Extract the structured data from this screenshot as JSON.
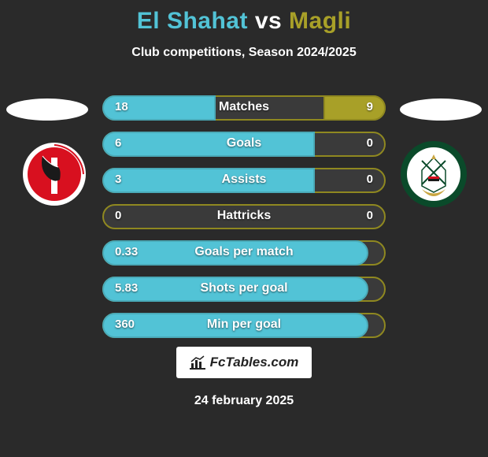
{
  "title": {
    "player1": "El Shahat",
    "vs": "vs",
    "player2": "Magli",
    "color1": "#52c3d6",
    "color_vs": "#ffffff",
    "color2": "#a8a028"
  },
  "subtitle": "Club competitions, Season 2024/2025",
  "accent": {
    "left": "#52c3d6",
    "right": "#a8a028"
  },
  "bar_bg": "#3a3a3a",
  "border_teal": "#4aaab8",
  "border_olive": "#8f8820",
  "stats": [
    {
      "label": "Matches",
      "left_val": "18",
      "right_val": "9",
      "left_pct": 40,
      "right_pct": 22
    },
    {
      "label": "Goals",
      "left_val": "6",
      "right_val": "0",
      "left_pct": 75,
      "right_pct": 0
    },
    {
      "label": "Assists",
      "left_val": "3",
      "right_val": "0",
      "left_pct": 75,
      "right_pct": 0
    },
    {
      "label": "Hattricks",
      "left_val": "0",
      "right_val": "0",
      "left_pct": 0,
      "right_pct": 0
    },
    {
      "label": "Goals per match",
      "left_val": "0.33",
      "right_val": "",
      "left_pct": 94,
      "right_pct": 0
    },
    {
      "label": "Shots per goal",
      "left_val": "5.83",
      "right_val": "",
      "left_pct": 94,
      "right_pct": 0
    },
    {
      "label": "Min per goal",
      "left_val": "360",
      "right_val": "",
      "left_pct": 94,
      "right_pct": 0
    }
  ],
  "fctables_brand": "FcTables.com",
  "date": "24 february 2025",
  "club_left": {
    "bg": "#d8101f",
    "stripe": "#ffffff"
  },
  "club_right": {
    "ring": "#0a4a2a",
    "inner": "#ffffff",
    "gold": "#c9a642"
  }
}
